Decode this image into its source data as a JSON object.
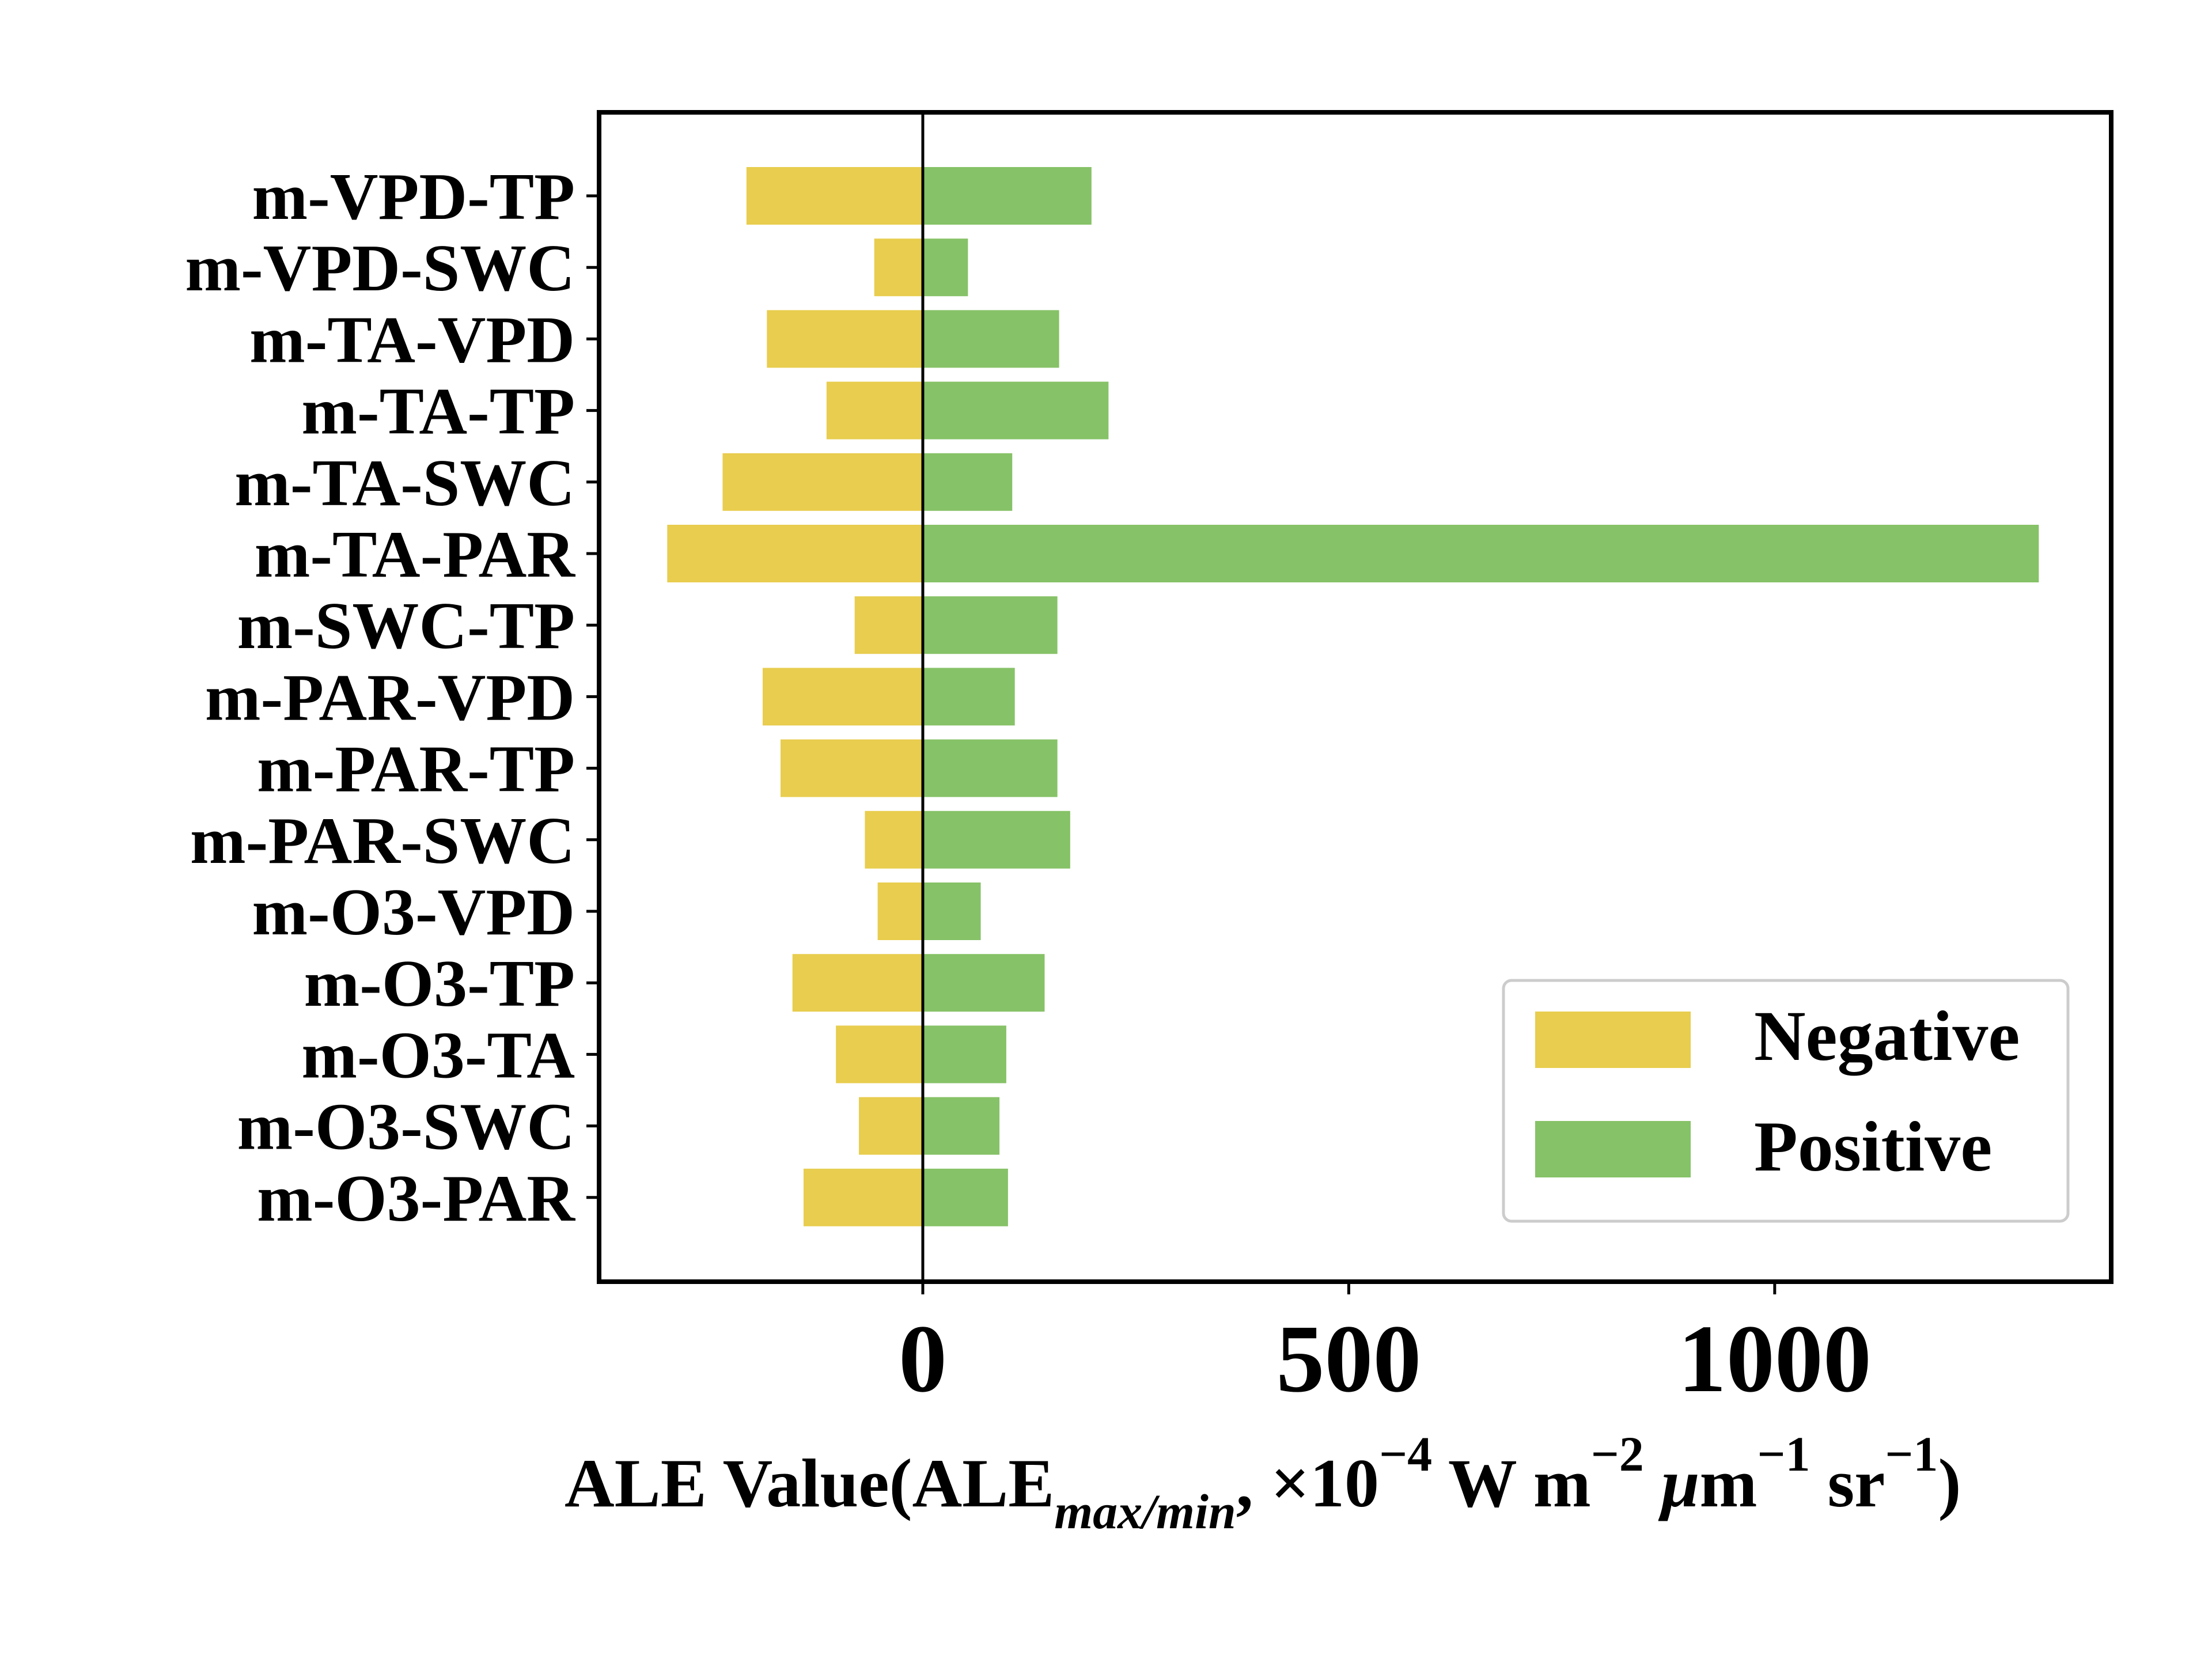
{
  "chart_data": {
    "type": "bar",
    "orientation": "horizontal",
    "categories": [
      "m-VPD-TP",
      "m-VPD-SWC",
      "m-TA-VPD",
      "m-TA-TP",
      "m-TA-SWC",
      "m-TA-PAR",
      "m-SWC-TP",
      "m-PAR-VPD",
      "m-PAR-TP",
      "m-PAR-SWC",
      "m-O3-VPD",
      "m-O3-TP",
      "m-O3-TA",
      "m-O3-SWC",
      "m-O3-PAR"
    ],
    "series": [
      {
        "name": "Negative",
        "color": "#e8cd4e",
        "values": [
          -207,
          -57,
          -183,
          -113,
          -235,
          -300,
          -80,
          -188,
          -167,
          -68,
          -53,
          -153,
          -102,
          -75,
          -140
        ]
      },
      {
        "name": "Positive",
        "color": "#86c267",
        "values": [
          198,
          53,
          160,
          218,
          105,
          1310,
          158,
          108,
          158,
          173,
          68,
          143,
          98,
          90,
          100
        ]
      }
    ],
    "xlabel": {
      "main": "ALE Value(ALE",
      "subscript": "max/min",
      "after_sub": ", ×10",
      "exp1": "−4",
      "unit_w": " W m",
      "exp2": "−2",
      "mu": " μ",
      "unit_m": "m",
      "exp3": "−1",
      "unit_sr": " sr",
      "exp4": "−1",
      "close": ")"
    },
    "xticks": [
      0,
      500,
      1000
    ],
    "xtick_labels": [
      "0",
      "500",
      "1000"
    ],
    "xlim": [
      -380,
      1395
    ],
    "reference_line_x": 0,
    "grid": false,
    "legend": {
      "placement": "lower-right",
      "entries": [
        "Negative",
        "Positive"
      ]
    }
  }
}
